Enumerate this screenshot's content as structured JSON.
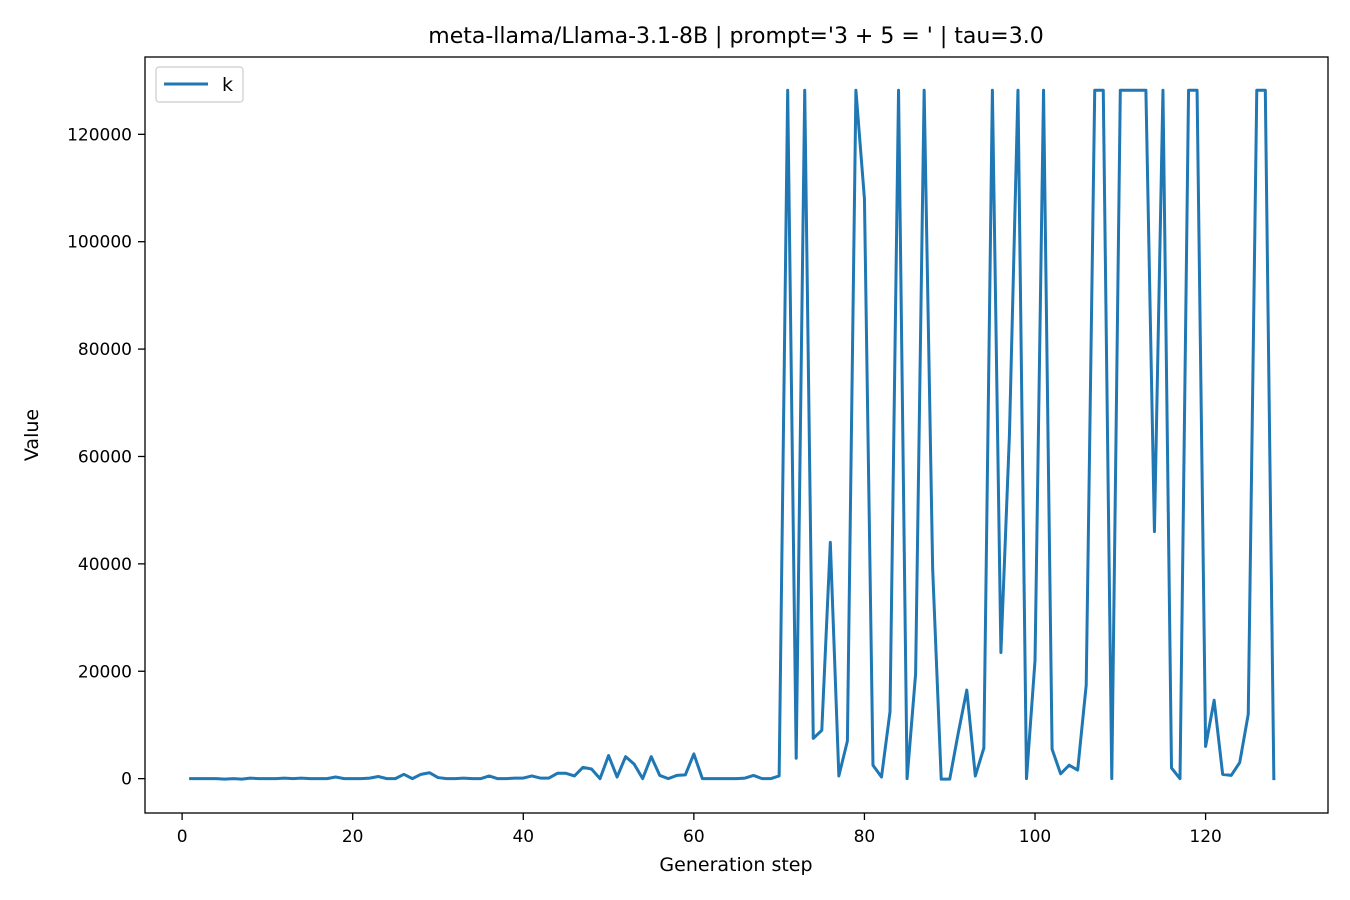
{
  "chart_data": {
    "type": "line",
    "title": "meta-llama/Llama-3.1-8B | prompt='3 + 5 = ' | tau=3.0",
    "xlabel": "Generation step",
    "ylabel": "Value",
    "xlim": [
      -4.35,
      134.35
    ],
    "ylim": [
      -6400,
      134400
    ],
    "xticks": [
      0,
      20,
      40,
      60,
      80,
      100,
      120
    ],
    "yticks": [
      0,
      20000,
      40000,
      60000,
      80000,
      100000,
      120000
    ],
    "grid": false,
    "legend_position": "top-left",
    "series": [
      {
        "name": "k",
        "color": "#1f77b4",
        "x": [
          1,
          2,
          3,
          4,
          5,
          6,
          7,
          8,
          9,
          10,
          11,
          12,
          13,
          14,
          15,
          16,
          17,
          18,
          19,
          20,
          21,
          22,
          23,
          24,
          25,
          26,
          27,
          28,
          29,
          30,
          31,
          32,
          33,
          34,
          35,
          36,
          37,
          38,
          39,
          40,
          41,
          42,
          43,
          44,
          45,
          46,
          47,
          48,
          49,
          50,
          51,
          52,
          53,
          54,
          55,
          56,
          57,
          58,
          59,
          60,
          61,
          62,
          63,
          64,
          65,
          66,
          67,
          68,
          69,
          70,
          71,
          72,
          73,
          74,
          75,
          76,
          77,
          78,
          79,
          80,
          81,
          82,
          83,
          84,
          85,
          86,
          87,
          88,
          89,
          90,
          91,
          92,
          93,
          94,
          95,
          96,
          97,
          98,
          99,
          100,
          101,
          102,
          103,
          104,
          105,
          106,
          107,
          108,
          109,
          110,
          111,
          112,
          113,
          114,
          115,
          116,
          117,
          118,
          119,
          120,
          121,
          122,
          123,
          124,
          125,
          126,
          127,
          128
        ],
        "values": [
          0,
          0,
          0,
          0,
          -100,
          0,
          -100,
          100,
          0,
          0,
          0,
          100,
          0,
          100,
          0,
          0,
          0,
          300,
          0,
          0,
          0,
          100,
          400,
          0,
          0,
          800,
          0,
          800,
          1100,
          200,
          0,
          0,
          100,
          0,
          0,
          500,
          0,
          0,
          100,
          100,
          500,
          100,
          100,
          1000,
          1000,
          500,
          2100,
          1800,
          0,
          4300,
          300,
          4100,
          2700,
          0,
          4100,
          600,
          0,
          600,
          700,
          4600,
          0,
          0,
          0,
          0,
          0,
          100,
          600,
          0,
          0,
          500,
          128200,
          3800,
          128200,
          7500,
          9000,
          44000,
          500,
          7000,
          128200,
          108000,
          2500,
          300,
          12500,
          128200,
          0,
          19500,
          128200,
          39000,
          -100,
          -100,
          8500,
          16500,
          500,
          5700,
          128200,
          23500,
          64000,
          128200,
          0,
          22000,
          128200,
          5500,
          900,
          2500,
          1600,
          17400,
          128200,
          128200,
          0,
          128200,
          128200,
          128200,
          128200,
          46000,
          128200,
          2000,
          0,
          128200,
          128200,
          6000,
          14600,
          800,
          600,
          3000,
          12000,
          128200,
          128200,
          0
        ]
      }
    ]
  }
}
